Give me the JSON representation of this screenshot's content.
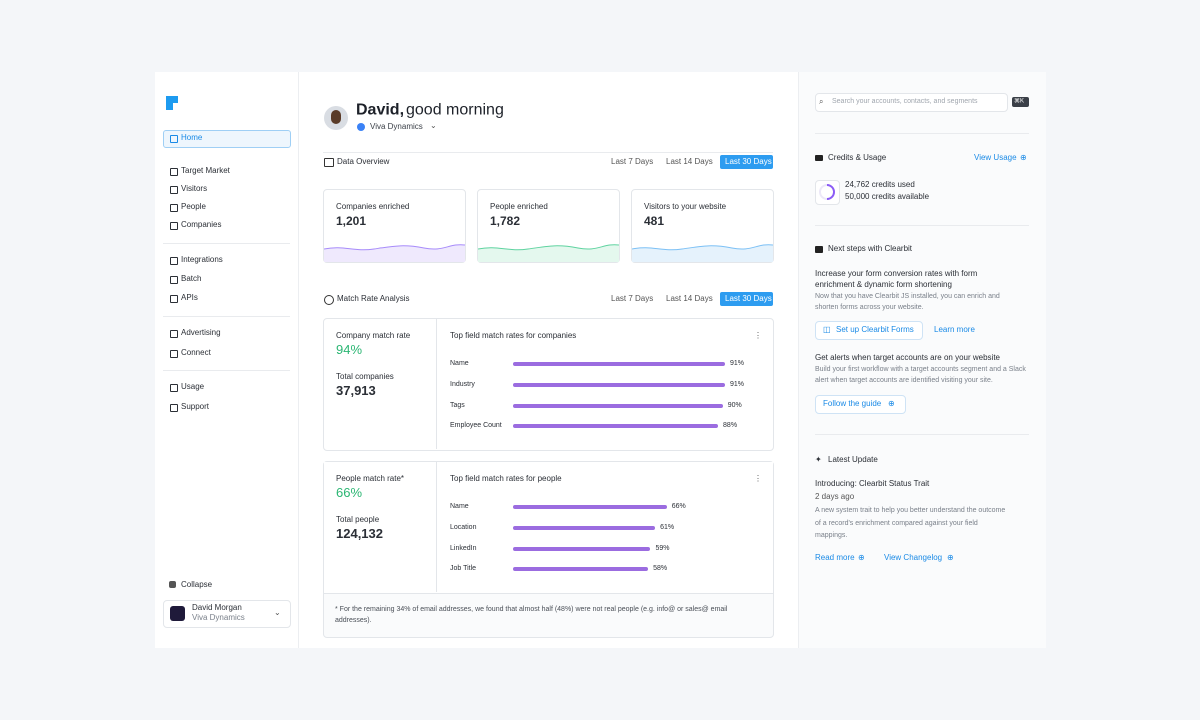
{
  "sidebar": {
    "nav": [
      "Home",
      "Target Market",
      "Visitors",
      "People",
      "Companies",
      "Integrations",
      "Batch",
      "APIs",
      "Advertising",
      "Connect",
      "Usage",
      "Support"
    ],
    "collapse": "Collapse",
    "user": {
      "name": "David Morgan",
      "company": "Viva Dynamics"
    }
  },
  "header": {
    "name": "David,",
    "greeting": "good morning",
    "company": "Viva Dynamics"
  },
  "data_overview": {
    "title": "Data Overview",
    "ranges": [
      "Last 7 Days",
      "Last 14 Days",
      "Last 30 Days"
    ],
    "cards": [
      {
        "label": "Companies enriched",
        "value": "1,201"
      },
      {
        "label": "People enriched",
        "value": "1,782"
      },
      {
        "label": "Visitors to your website",
        "value": "481"
      }
    ]
  },
  "match_rate": {
    "title": "Match Rate Analysis",
    "ranges": [
      "Last 7 Days",
      "Last 14 Days",
      "Last 30 Days"
    ],
    "panels": [
      {
        "rate_label": "Company match rate",
        "rate": "94%",
        "total_label": "Total companies",
        "total": "37,913",
        "chart_title": "Top field match rates for companies",
        "fields": [
          {
            "name": "Name",
            "value": 91,
            "label": "91%"
          },
          {
            "name": "Industry",
            "value": 91,
            "label": "91%"
          },
          {
            "name": "Tags",
            "value": 90,
            "label": "90%"
          },
          {
            "name": "Employee Count",
            "value": 88,
            "label": "88%"
          }
        ]
      },
      {
        "rate_label": "People match rate*",
        "rate": "66%",
        "total_label": "Total people",
        "total": "124,132",
        "chart_title": "Top field match rates for people",
        "fields": [
          {
            "name": "Name",
            "value": 66,
            "label": "66%"
          },
          {
            "name": "Location",
            "value": 61,
            "label": "61%"
          },
          {
            "name": "LinkedIn",
            "value": 59,
            "label": "59%"
          },
          {
            "name": "Job Title",
            "value": 58,
            "label": "58%"
          }
        ]
      }
    ],
    "footnote": "* For the remaining 34% of email addresses, we found that almost half (48%) were not real people (e.g. info@ or sales@ email addresses)."
  },
  "right": {
    "search": "Search your accounts, contacts, and segments",
    "shortcut": "⌘K",
    "credits": {
      "title": "Credits & Usage",
      "link": "View Usage",
      "used": "24,762 credits used",
      "available": "50,000 credits available"
    },
    "next_steps": {
      "title": "Next steps with Clearbit",
      "items": [
        {
          "heading": "Increase your form conversion rates with form enrichment & dynamic form shortening",
          "description": "Now that you have Clearbit JS installed, you can enrich and shorten forms across your website.",
          "button": "Set up Clearbit Forms",
          "link": "Learn more"
        },
        {
          "heading": "Get alerts when target accounts are on your website",
          "description": "Build your first workflow with a target accounts segment and a Slack alert when target accounts are identified visiting your site.",
          "button": "Follow the guide"
        }
      ]
    },
    "latest": {
      "title": "Latest Update",
      "headline": "Introducing: Clearbit Status Trait",
      "date": "2 days ago",
      "description": "A new system trait to help you better understand the outcome of a record's enrichment compared against your field mappings.",
      "links": [
        "Read more",
        "View Changelog"
      ]
    }
  }
}
